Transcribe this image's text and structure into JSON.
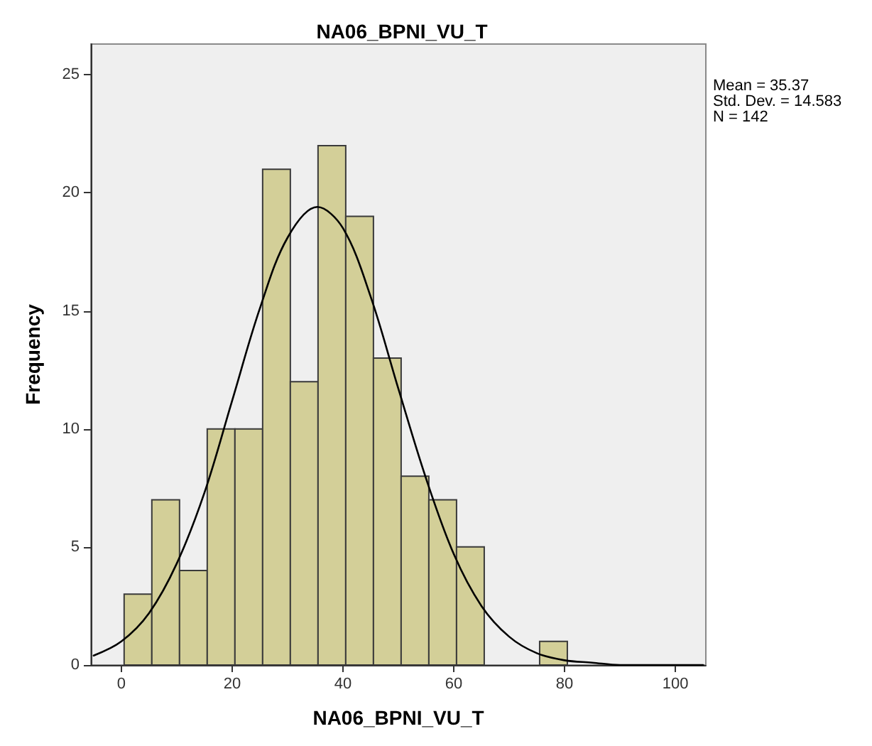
{
  "chart_data": {
    "type": "histogram",
    "title": "NA06_BPNI_VU_T",
    "xlabel": "NA06_BPNI_VU_T",
    "ylabel": "Frequency",
    "bins": [
      0.5,
      5.5,
      10.5,
      15.5,
      20.5,
      25.5,
      30.5,
      35.5,
      40.5,
      45.5,
      50.5,
      55.5,
      60.5,
      65.5,
      70.5,
      75.5,
      80.5
    ],
    "series": [
      {
        "color": "#d3cf98",
        "values": [
          3,
          7,
          4,
          10,
          10,
          21,
          12,
          22,
          19,
          13,
          8,
          7,
          5,
          0,
          0,
          1
        ]
      },
      {
        "type": "line",
        "color": "#000000",
        "marker": "none",
        "x": [
          -5,
          0,
          5,
          10,
          15,
          20,
          25,
          30,
          35.37,
          40,
          45,
          50,
          55,
          60,
          65,
          70,
          75,
          80,
          85,
          90,
          95,
          100,
          105
        ],
        "values": [
          0.4,
          1.0,
          2.2,
          4.3,
          7.3,
          11.2,
          15.1,
          18.1,
          19.4,
          18.5,
          15.6,
          11.7,
          7.9,
          4.7,
          2.5,
          1.2,
          0.5,
          0.2,
          0.1,
          0,
          0,
          0,
          0
        ]
      }
    ],
    "xlim": [
      -5.5,
      105.5
    ],
    "xticks": [
      0,
      20,
      40,
      60,
      80,
      100
    ],
    "ylim": [
      0,
      26.3
    ],
    "yticks": [
      0,
      5,
      10,
      15,
      20,
      25
    ],
    "grid": false,
    "annotations": [
      "Mean = 35.37",
      "Std. Dev. = 14.583",
      "N = 142"
    ]
  }
}
